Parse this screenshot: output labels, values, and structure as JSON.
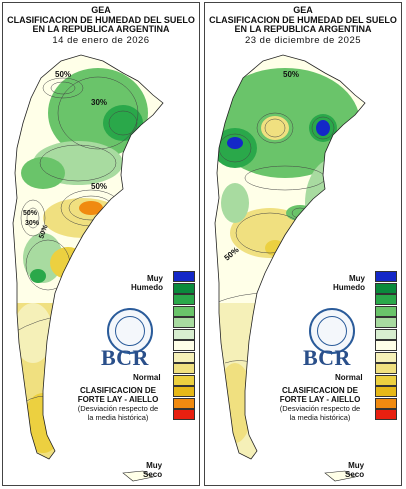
{
  "maps": [
    {
      "title_1": "GEA",
      "title_2": "CLASIFICACION DE HUMEDAD DEL SUELO",
      "title_3": "EN LA REPUBLICA ARGENTINA",
      "date": "14 de enero de 2026",
      "contour_labels": [
        "50%",
        "30%",
        "50%",
        "50%",
        "30%",
        "50%"
      ]
    },
    {
      "title_1": "GEA",
      "title_2": "CLASIFICACION DE HUMEDAD DEL SUELO",
      "title_3": "EN LA REPUBLICA ARGENTINA",
      "date": "23 de diciembre de 2025",
      "contour_labels": [
        "50%",
        "50%"
      ]
    }
  ],
  "legend": {
    "top_label_1": "Muy",
    "top_label_2": "Humedo",
    "middle_label": "Normal",
    "bottom_label_1": "Muy",
    "bottom_label_2": "Seco",
    "colors": [
      "#1428c8",
      "#0a8a3c",
      "#2aa84a",
      "#6ac46a",
      "#a8dba0",
      "#d8eed0",
      "#ffffe8",
      "#f5f0b8",
      "#f0e080",
      "#ecd040",
      "#e6b818",
      "#f08a10",
      "#e82010"
    ]
  },
  "logo": {
    "text": "BCR",
    "seal_text": "BOLSA DE COMERCIO DE ROSARIO"
  },
  "note": {
    "line_1": "CLASIFICACION DE",
    "line_2": "FORTE LAY - AIELLO",
    "line_3": "(Desviación respecto de",
    "line_4": "la media histórica)"
  }
}
